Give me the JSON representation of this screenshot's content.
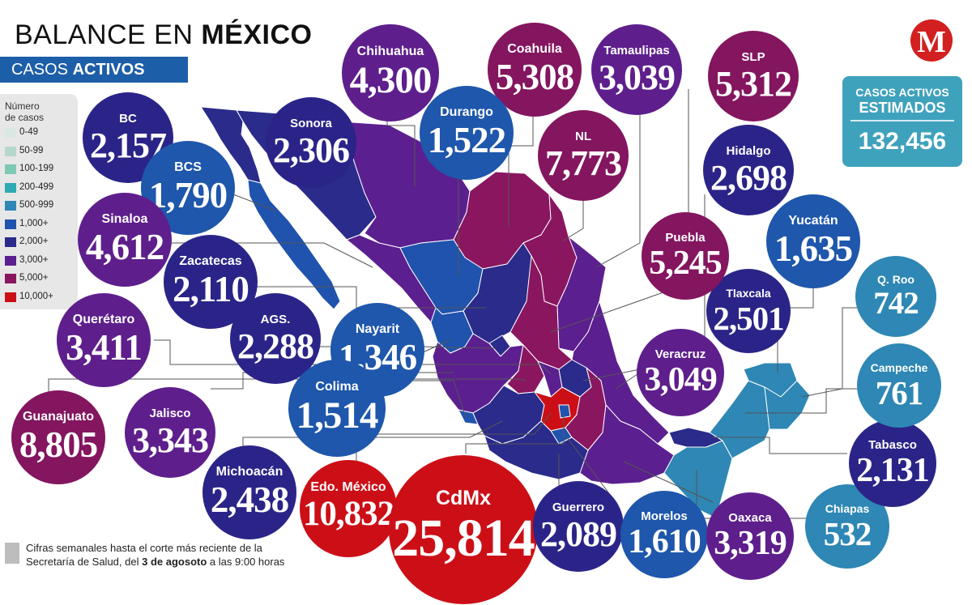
{
  "title": {
    "prefix": "BALANCE EN",
    "bold": "MÉXICO"
  },
  "subtitle": {
    "prefix": "CASOS",
    "bold": "ACTIVOS"
  },
  "logo_letter": "M",
  "legend": {
    "title_line1": "Número",
    "title_line2": "de casos",
    "items": [
      {
        "label": "0-49",
        "color": "#dbe7e3"
      },
      {
        "label": "50-99",
        "color": "#b6d7cc"
      },
      {
        "label": "100-199",
        "color": "#7fc9b4"
      },
      {
        "label": "200-499",
        "color": "#2eaab3"
      },
      {
        "label": "500-999",
        "color": "#2e87b4"
      },
      {
        "label": "1,000+",
        "color": "#1f53ad"
      },
      {
        "label": "2,000+",
        "color": "#2a2b8a"
      },
      {
        "label": "3,000+",
        "color": "#5c1f8f"
      },
      {
        "label": "5,000+",
        "color": "#8a1660"
      },
      {
        "label": "10,000+",
        "color": "#cc0f17"
      }
    ]
  },
  "estimated": {
    "line1": "CASOS ACTIVOS",
    "line2": "ESTIMADOS",
    "value": "132,456"
  },
  "footnote": {
    "line1": "Cifras semanales hasta el corte más reciente de la",
    "line2_a": "Secretaría de Salud, del",
    "line2_bold": "3 de agosoto",
    "line2_b": "a las 9:00 horas"
  },
  "colors": {
    "map_1000": "#1f53ad",
    "map_2000": "#2a2b8a",
    "map_3000": "#5c1f8f",
    "map_5000": "#8a1660",
    "map_10000": "#cc0f17",
    "map_500": "#2e87b4",
    "bubble_2000": "#2b2488",
    "bubble_3000": "#5e1f8c",
    "bubble_5000": "#84155f",
    "bubble_1000": "#1e57ab",
    "bubble_500": "#2e87b4",
    "bubble_10000": "#cc0f17"
  },
  "states": [
    {
      "name": "BC",
      "value": "2,157"
    },
    {
      "name": "BCS",
      "value": "1,790"
    },
    {
      "name": "Sinaloa",
      "value": "4,612"
    },
    {
      "name": "Zacatecas",
      "value": "2,110"
    },
    {
      "name": "AGS.",
      "value": "2,288"
    },
    {
      "name": "Querétaro",
      "value": "3,411"
    },
    {
      "name": "Nayarit",
      "value": "1,346"
    },
    {
      "name": "Guanajuato",
      "value": "8,805"
    },
    {
      "name": "Jalisco",
      "value": "3,343"
    },
    {
      "name": "Colima",
      "value": "1,514"
    },
    {
      "name": "Michoacán",
      "value": "2,438"
    },
    {
      "name": "Edo. México",
      "value": "10,832"
    },
    {
      "name": "CdMx",
      "value": "25,814"
    },
    {
      "name": "Guerrero",
      "value": "2,089"
    },
    {
      "name": "Morelos",
      "value": "1,610"
    },
    {
      "name": "Oaxaca",
      "value": "3,319"
    },
    {
      "name": "Chiapas",
      "value": "532"
    },
    {
      "name": "Tabasco",
      "value": "2,131"
    },
    {
      "name": "Campeche",
      "value": "761"
    },
    {
      "name": "Q. Roo",
      "value": "742"
    },
    {
      "name": "Veracruz",
      "value": "3,049"
    },
    {
      "name": "Tlaxcala",
      "value": "2,501"
    },
    {
      "name": "Yucatán",
      "value": "1,635"
    },
    {
      "name": "Puebla",
      "value": "5,245"
    },
    {
      "name": "Hidalgo",
      "value": "2,698"
    },
    {
      "name": "NL",
      "value": "7,773"
    },
    {
      "name": "SLP",
      "value": "5,312"
    },
    {
      "name": "Tamaulipas",
      "value": "3,039"
    },
    {
      "name": "Coahuila",
      "value": "5,308"
    },
    {
      "name": "Durango",
      "value": "1,522"
    },
    {
      "name": "Chihuahua",
      "value": "4,300"
    },
    {
      "name": "Sonora",
      "value": "2,306"
    }
  ]
}
